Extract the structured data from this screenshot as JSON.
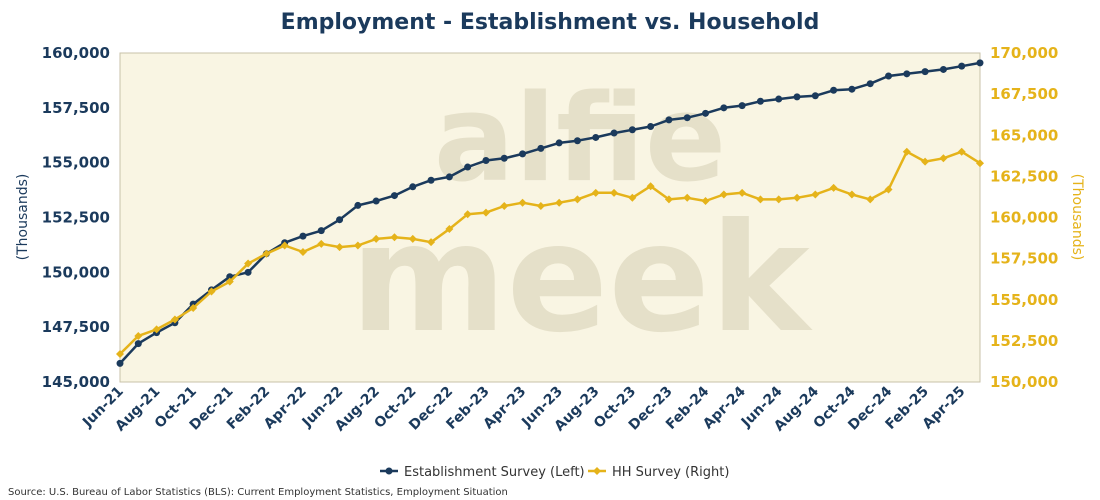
{
  "colors": {
    "establishment": "#1b3a5c",
    "household": "#e5b31a",
    "plot_bg": "#f9f5e3",
    "watermark": "#d6cfb4"
  },
  "watermark": {
    "line1": "alfie",
    "line2": "meek"
  },
  "source": "Source: U.S. Bureau of Labor Statistics (BLS): Current Employment Statistics, Employment Situation",
  "chart_data": {
    "type": "line",
    "title": "Employment - Establishment vs. Household",
    "ylabel_left": "(Thousands)",
    "ylabel_right": "(Thousands)",
    "ylim_left": [
      145000,
      160000
    ],
    "ylim_right": [
      150000,
      170000
    ],
    "yticks_left": [
      "145,000",
      "147,500",
      "150,000",
      "152,500",
      "155,000",
      "157,500",
      "160,000"
    ],
    "yticks_right": [
      "150,000",
      "152,500",
      "155,000",
      "157,500",
      "160,000",
      "162,500",
      "165,000",
      "167,500",
      "170,000"
    ],
    "x_tick_labels": [
      "Jun-21",
      "Aug-21",
      "Oct-21",
      "Dec-21",
      "Feb-22",
      "Apr-22",
      "Jun-22",
      "Aug-22",
      "Oct-22",
      "Dec-22",
      "Feb-23",
      "Apr-23",
      "Jun-23",
      "Aug-23",
      "Oct-23",
      "Dec-23",
      "Feb-24",
      "Apr-24",
      "Jun-24",
      "Aug-24",
      "Oct-24",
      "Dec-24",
      "Feb-25",
      "Apr-25"
    ],
    "categories": [
      "Jun-21",
      "Jul-21",
      "Aug-21",
      "Sep-21",
      "Oct-21",
      "Nov-21",
      "Dec-21",
      "Jan-22",
      "Feb-22",
      "Mar-22",
      "Apr-22",
      "May-22",
      "Jun-22",
      "Jul-22",
      "Aug-22",
      "Sep-22",
      "Oct-22",
      "Nov-22",
      "Dec-22",
      "Jan-23",
      "Feb-23",
      "Mar-23",
      "Apr-23",
      "May-23",
      "Jun-23",
      "Jul-23",
      "Aug-23",
      "Sep-23",
      "Oct-23",
      "Nov-23",
      "Dec-23",
      "Jan-24",
      "Feb-24",
      "Mar-24",
      "Apr-24",
      "May-24",
      "Jun-24",
      "Jul-24",
      "Aug-24",
      "Sep-24",
      "Oct-24",
      "Nov-24",
      "Dec-24",
      "Jan-25",
      "Feb-25",
      "Mar-25",
      "Apr-25",
      "May-25"
    ],
    "series": [
      {
        "name": "Establishment Survey (Left)",
        "axis": "left",
        "values": [
          145850,
          146750,
          147250,
          147700,
          148550,
          149200,
          149800,
          150000,
          150850,
          151350,
          151650,
          151900,
          152400,
          153050,
          153250,
          153500,
          153900,
          154200,
          154350,
          154800,
          155100,
          155200,
          155400,
          155650,
          155900,
          156000,
          156150,
          156350,
          156500,
          156650,
          156950,
          157050,
          157250,
          157500,
          157600,
          157800,
          157900,
          158000,
          158050,
          158300,
          158350,
          158600,
          158950,
          159050,
          159150,
          159250,
          159400,
          159550
        ]
      },
      {
        "name": "HH Survey (Right)",
        "axis": "right",
        "values": [
          151700,
          152800,
          153200,
          153800,
          154500,
          155500,
          156100,
          157200,
          157800,
          158300,
          157900,
          158400,
          158200,
          158300,
          158700,
          158800,
          158700,
          158500,
          159300,
          160200,
          160300,
          160700,
          160900,
          160700,
          160900,
          161100,
          161500,
          161500,
          161200,
          161900,
          161100,
          161200,
          161000,
          161400,
          161500,
          161100,
          161100,
          161200,
          161400,
          161800,
          161400,
          161100,
          161700,
          164000,
          163400,
          163600,
          164000,
          163300
        ]
      }
    ],
    "legend_position": "bottom-center",
    "grid": false
  }
}
